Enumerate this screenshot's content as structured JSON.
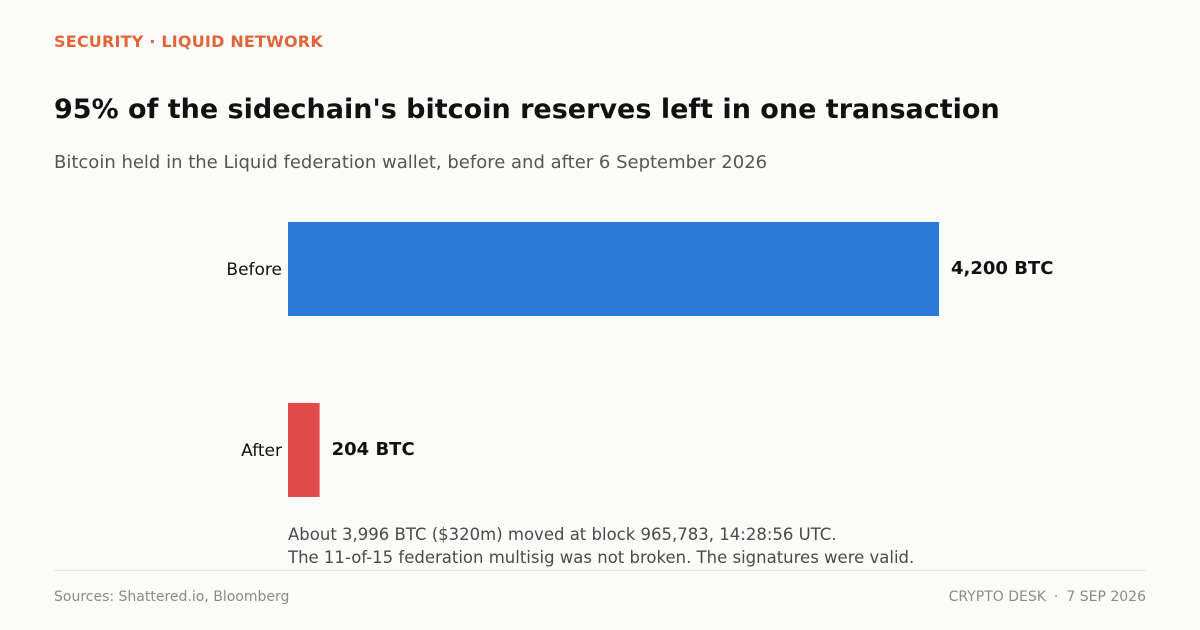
{
  "header": {
    "kicker": "SECURITY · LIQUID NETWORK",
    "title": "95% of the sidechain's bitcoin reserves left in one transaction",
    "subtitle": "Bitcoin held in the Liquid federation wallet, before and after 6 September 2026"
  },
  "chart_data": {
    "type": "bar",
    "orientation": "horizontal",
    "categories": [
      "Before",
      "After"
    ],
    "values": [
      4200,
      204
    ],
    "data_labels": [
      "4,200 BTC",
      "204 BTC"
    ],
    "unit": "BTC",
    "xlim": [
      0,
      4200
    ],
    "colors": [
      "#2a79d6",
      "#e34a4a"
    ],
    "grid": false,
    "legend": "none"
  },
  "annotation": {
    "line1": "About 3,996 BTC ($320m) moved at block 965,783, 14:28:56 UTC.",
    "line2": "The 11-of-15 federation multisig was not broken. The signatures were valid."
  },
  "footer": {
    "sources": "Sources: Shattered.io, Bloomberg",
    "desk": "CRYPTO DESK",
    "separator": "·",
    "date": "7 SEP 2026"
  }
}
